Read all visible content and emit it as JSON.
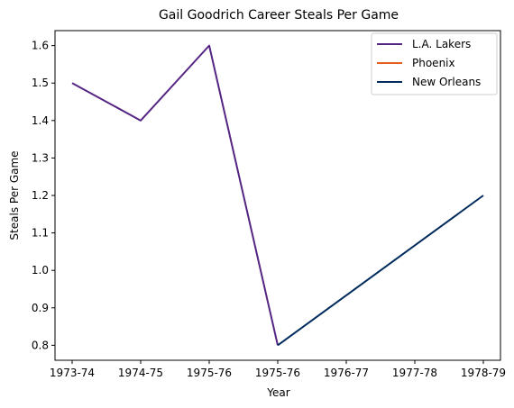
{
  "chart_data": {
    "type": "line",
    "title": "Gail Goodrich Career Steals Per Game",
    "xlabel": "Year",
    "ylabel": "Steals Per Game",
    "x_tick_labels": [
      "1973-74",
      "1974-75",
      "1975-76",
      "1975-76",
      "1976-77",
      "1977-78",
      "1978-79"
    ],
    "y_ticks": [
      0.8,
      0.9,
      1.0,
      1.1,
      1.2,
      1.3,
      1.4,
      1.5,
      1.6
    ],
    "ylim": [
      0.76,
      1.64
    ],
    "xlim": [
      -0.25,
      6.25
    ],
    "legend_position": "top-right",
    "grid": false,
    "series": [
      {
        "name": "L.A. Lakers",
        "color": "#552583",
        "x": [
          0,
          1,
          2,
          3
        ],
        "y": [
          1.5,
          1.4,
          1.6,
          0.8
        ]
      },
      {
        "name": "Phoenix",
        "color": "#E56020",
        "x": [],
        "y": []
      },
      {
        "name": "New Orleans",
        "color": "#002B5C",
        "x": [
          3,
          6
        ],
        "y": [
          0.8,
          1.2
        ]
      }
    ]
  }
}
